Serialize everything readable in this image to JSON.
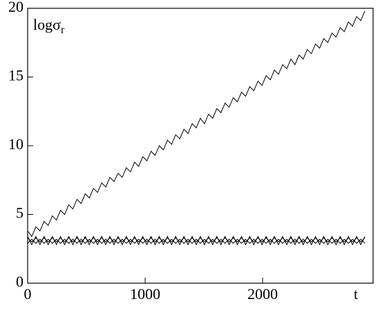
{
  "chart_data": {
    "type": "line",
    "y_label": "logσ",
    "y_label_subscript": "r",
    "x_label": "t",
    "x": [
      0,
      35,
      70,
      105,
      140,
      175,
      210,
      245,
      280,
      315,
      350,
      385,
      420,
      455,
      490,
      525,
      560,
      595,
      630,
      665,
      700,
      735,
      770,
      805,
      840,
      875,
      910,
      945,
      980,
      1015,
      1050,
      1085,
      1120,
      1155,
      1190,
      1225,
      1260,
      1295,
      1330,
      1365,
      1400,
      1435,
      1470,
      1505,
      1540,
      1575,
      1610,
      1645,
      1680,
      1715,
      1750,
      1785,
      1820,
      1855,
      1890,
      1925,
      1960,
      1995,
      2030,
      2065,
      2100,
      2135,
      2170,
      2205,
      2240,
      2275,
      2310,
      2345,
      2380,
      2415,
      2450,
      2485,
      2520,
      2555,
      2590,
      2625,
      2660,
      2695,
      2730,
      2765,
      2800,
      2835,
      2870
    ],
    "series": [
      {
        "color": "#000000",
        "values": [
          3.8,
          3.4,
          4.1,
          3.8,
          4.5,
          4.2,
          4.9,
          4.6,
          5.3,
          5.0,
          5.7,
          5.4,
          6.1,
          5.8,
          6.5,
          6.2,
          6.9,
          6.6,
          7.3,
          7.0,
          7.7,
          7.4,
          8.0,
          7.7,
          8.4,
          8.1,
          8.8,
          8.5,
          9.2,
          8.9,
          9.6,
          9.3,
          10.0,
          9.7,
          10.4,
          10.1,
          10.8,
          10.5,
          11.2,
          10.9,
          11.6,
          11.3,
          12.0,
          11.6,
          12.3,
          12.0,
          12.7,
          12.4,
          13.1,
          12.8,
          13.5,
          13.2,
          13.9,
          13.6,
          14.3,
          14.0,
          14.7,
          14.4,
          15.1,
          14.8,
          15.5,
          15.2,
          15.9,
          15.6,
          16.3,
          15.9,
          16.6,
          16.3,
          17.0,
          16.7,
          17.4,
          17.1,
          17.8,
          17.5,
          18.2,
          17.9,
          18.6,
          18.3,
          19.0,
          18.7,
          19.4,
          19.1,
          19.8
        ]
      },
      {
        "color": "#000000",
        "values": [
          3.4,
          2.8,
          3.4,
          2.8,
          3.4,
          2.8,
          3.4,
          2.8,
          3.4,
          2.8,
          3.4,
          2.8,
          3.4,
          2.8,
          3.4,
          2.8,
          3.4,
          2.8,
          3.4,
          2.8,
          3.4,
          2.8,
          3.4,
          2.8,
          3.4,
          2.8,
          3.4,
          2.8,
          3.4,
          2.8,
          3.4,
          2.8,
          3.4,
          2.8,
          3.4,
          2.8,
          3.4,
          2.8,
          3.4,
          2.8,
          3.4,
          2.8,
          3.4,
          2.8,
          3.4,
          2.8,
          3.4,
          2.8,
          3.4,
          2.8,
          3.4,
          2.8,
          3.4,
          2.8,
          3.4,
          2.8,
          3.4,
          2.8,
          3.4,
          2.8,
          3.4,
          2.8,
          3.4,
          2.8,
          3.4,
          2.8,
          3.4,
          2.8,
          3.4,
          2.8,
          3.4,
          2.8,
          3.4,
          2.8,
          3.4,
          2.8,
          3.4,
          2.8,
          3.4,
          2.8,
          3.4,
          2.8,
          3.4
        ]
      },
      {
        "color": "#000000",
        "values": [
          2.9,
          3.2,
          2.9,
          3.2,
          2.9,
          3.2,
          2.9,
          3.2,
          2.9,
          3.2,
          2.9,
          3.2,
          2.9,
          3.2,
          2.9,
          3.2,
          2.9,
          3.2,
          2.9,
          3.2,
          2.9,
          3.2,
          2.9,
          3.2,
          2.9,
          3.2,
          2.9,
          3.2,
          2.9,
          3.2,
          2.9,
          3.2,
          2.9,
          3.2,
          2.9,
          3.2,
          2.9,
          3.2,
          2.9,
          3.2,
          2.9,
          3.2,
          2.9,
          3.2,
          2.9,
          3.2,
          2.9,
          3.2,
          2.9,
          3.2,
          2.9,
          3.2,
          2.9,
          3.2,
          2.9,
          3.2,
          2.9,
          3.2,
          2.9,
          3.2,
          2.9,
          3.2,
          2.9,
          3.2,
          2.9,
          3.2,
          2.9,
          3.2,
          2.9,
          3.2,
          2.9,
          3.2,
          2.9,
          3.2,
          2.9,
          3.2,
          2.9,
          3.2,
          2.9,
          3.2,
          2.9,
          3.2,
          2.9
        ]
      },
      {
        "color": "#000000",
        "values": [
          3.3,
          3.0,
          3.3,
          3.0,
          3.3,
          3.0,
          3.3,
          3.0,
          3.3,
          3.0,
          3.3,
          3.0,
          3.3,
          3.0,
          3.3,
          3.0,
          3.3,
          3.0,
          3.3,
          3.0,
          3.3,
          3.0,
          3.3,
          3.0,
          3.3,
          3.0,
          3.3,
          3.0,
          3.3,
          3.0,
          3.3,
          3.0,
          3.3,
          3.0,
          3.3,
          3.0,
          3.3,
          3.0,
          3.3,
          3.0,
          3.3,
          3.0,
          3.3,
          3.0,
          3.3,
          3.0,
          3.3,
          3.0,
          3.3,
          3.0,
          3.3,
          3.0,
          3.3,
          3.0,
          3.3,
          3.0,
          3.3,
          3.0,
          3.3,
          3.0,
          3.3,
          3.0,
          3.3,
          3.0,
          3.3,
          3.0,
          3.3,
          3.0,
          3.3,
          3.0,
          3.3,
          3.0,
          3.3,
          3.0,
          3.3,
          3.0,
          3.3,
          3.0,
          3.3,
          3.0,
          3.3,
          3.0,
          3.3
        ]
      }
    ],
    "xlim": [
      0,
      2940
    ],
    "ylim": [
      0,
      20
    ],
    "xticks": [
      0,
      1000,
      2000
    ],
    "yticks": [
      0,
      5,
      10,
      15,
      20
    ],
    "grid": false
  }
}
